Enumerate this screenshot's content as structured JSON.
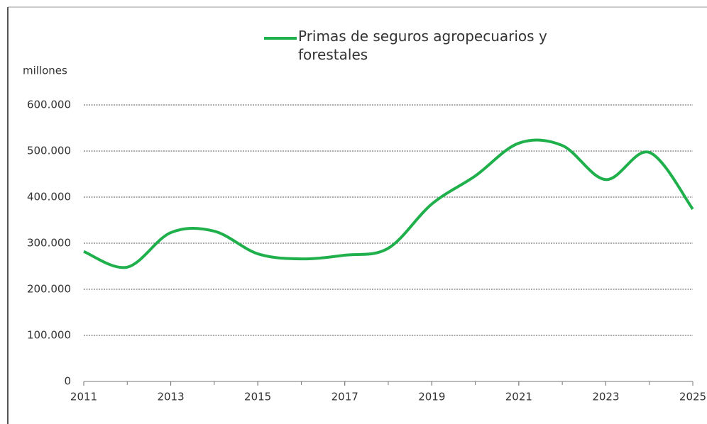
{
  "chart_data": {
    "type": "line",
    "y_label": "millones",
    "x": [
      2011,
      2012,
      2013,
      2014,
      2015,
      2016,
      2017,
      2018,
      2019,
      2020,
      2021,
      2022,
      2023,
      2024,
      2025
    ],
    "series": [
      {
        "name": "Primas de seguros agropecuarios y forestales",
        "color": "#1fb04c",
        "values": [
          282000,
          248000,
          323000,
          326000,
          277000,
          266000,
          274000,
          289000,
          385000,
          446000,
          517000,
          512000,
          438000,
          497000,
          374000
        ]
      }
    ],
    "xlim": [
      2011,
      2025
    ],
    "xticks": [
      2011,
      2013,
      2015,
      2017,
      2019,
      2021,
      2023,
      2025
    ],
    "ylim": [
      0,
      600000
    ],
    "yticks": [
      0,
      {
        "value": 100000,
        "label": "100.000"
      },
      {
        "value": 200000,
        "label": "200.000"
      },
      {
        "value": 300000,
        "label": "300.000"
      },
      {
        "value": 400000,
        "label": "400.000"
      },
      {
        "value": 500000,
        "label": "500.000"
      },
      {
        "value": 600000,
        "label": "600.000"
      }
    ],
    "grid": true
  }
}
